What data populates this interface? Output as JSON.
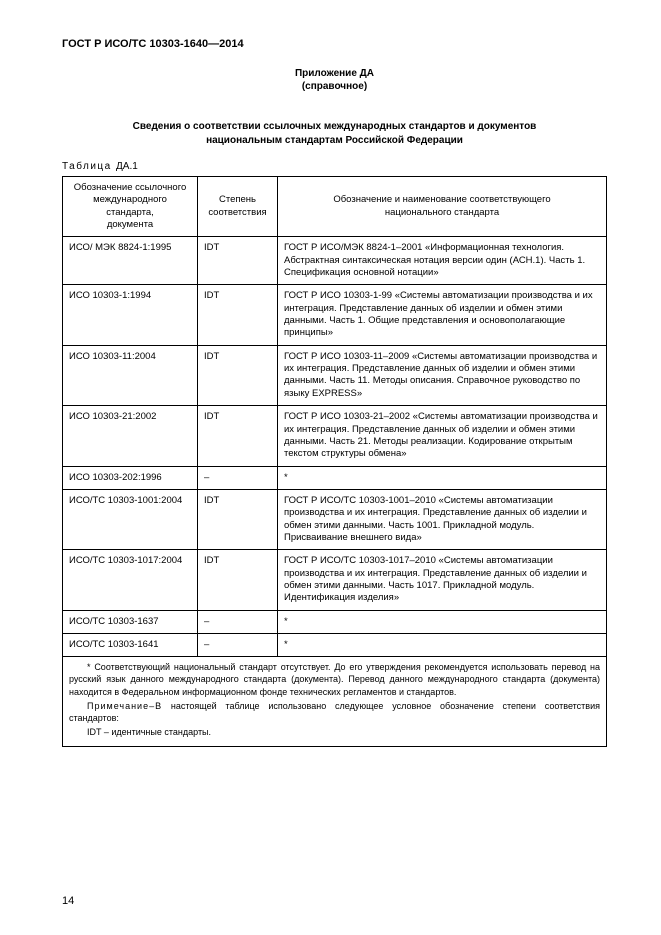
{
  "header": "ГОСТ Р ИСО/ТС 10303-1640—2014",
  "annex": {
    "title": "Приложение ДА",
    "sub": "(справочное)"
  },
  "section_title_1": "Сведения о соответствии ссылочных международных стандартов и документов",
  "section_title_2": "национальным стандартам Российской Федерации",
  "table_caption_word": "Таблица",
  "table_caption_num": "ДА.1",
  "columns": {
    "c1a": "Обозначение ссылочного",
    "c1b": "международного стандарта,",
    "c1c": "документа",
    "c2a": "Степень",
    "c2b": "соответствия",
    "c3a": "Обозначение и наименование соответствующего",
    "c3b": "национального стандарта"
  },
  "rows": [
    {
      "c1": "ИСО/ МЭК 8824-1:1995",
      "c2": "IDT",
      "c3": "ГОСТ Р ИСО/МЭК 8824-1–2001 «Информационная технология. Абстрактная синтаксическая нотация версии один (АСН.1). Часть 1. Спецификация основной нотации»"
    },
    {
      "c1": "ИСО 10303-1:1994",
      "c2": "IDT",
      "c3": "ГОСТ Р ИСО 10303-1-99 «Системы автоматизации производства и их интеграция. Представление данных об изделии и обмен этими данными. Часть 1. Общие представления и основополагающие принципы»"
    },
    {
      "c1": "ИСО 10303-11:2004",
      "c2": "IDT",
      "c3": "ГОСТ Р ИСО 10303-11–2009 «Системы автоматизации производства и их интеграция. Представление данных об изделии и обмен этими данными. Часть 11. Методы описания. Справочное руководство по языку EXPRESS»"
    },
    {
      "c1": "ИСО 10303-21:2002",
      "c2": "IDT",
      "c3": "ГОСТ Р ИСО 10303-21–2002 «Системы автоматизации производства и их интеграция. Представление данных об изделии и обмен этими данными. Часть 21. Методы реализации. Кодирование открытым текстом структуры обмена»"
    },
    {
      "c1": "ИСО 10303-202:1996",
      "c2": "–",
      "c3": "*",
      "star": true
    },
    {
      "c1": "ИСО/ТС 10303-1001:2004",
      "c2": "IDT",
      "c3": "ГОСТ Р ИСО/ТС 10303-1001–2010 «Системы автомати­зации производства и их интеграция. Представление данных об изделии и обмен этими данными. Часть 1001. Прикладной модуль. Присваивание внешнего вида»"
    },
    {
      "c1": "ИСО/ТС 10303-1017:2004",
      "c2": "IDT",
      "c3": "ГОСТ Р ИСО/ТС 10303-1017–2010 «Системы автомати­зации производства и их интеграция. Представление данных об изделии и обмен этими данными. Часть 1017. Прикладной модуль. Идентификация изделия»"
    },
    {
      "c1": "ИСО/ТС 10303-1637",
      "c2": "–",
      "c3": "*",
      "star": true
    },
    {
      "c1": "ИСО/ТС 10303-1641",
      "c2": "–",
      "c3": "*",
      "star": true
    }
  ],
  "note1": "* Соответствующий национальный стандарт отсутствует. До его утверждения рекомендуется использовать перевод на русский язык данного международного стандарта (документа). Перевод данного международного стандарта (документа) находится в Федеральном информационном фонде технических регламентов и стандартов.",
  "note2_a": "Примечание–В",
  "note2_b": "настоящей таблице использовано следующее условное обозначение степени соответствия стандартов:",
  "note3": "IDT – идентичные стандарты.",
  "page_number": "14"
}
